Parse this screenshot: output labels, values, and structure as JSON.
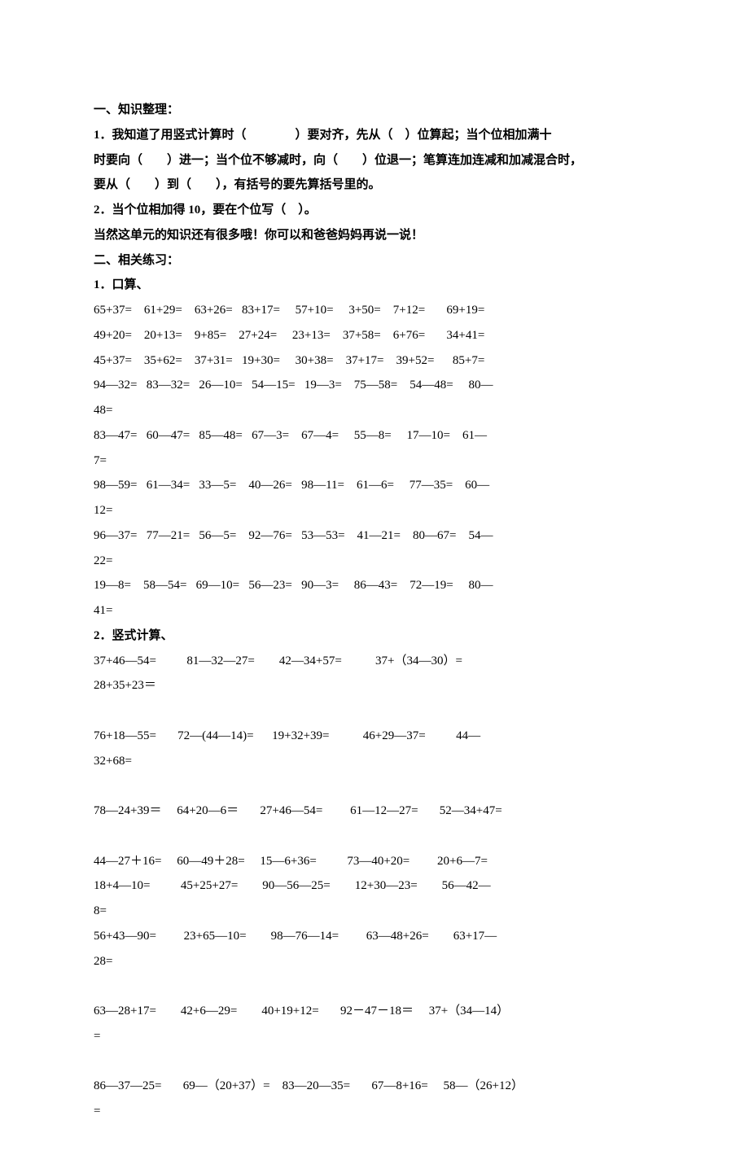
{
  "section1_title": "一、知识整理：",
  "p1_l1": "1．我知道了用竖式计算时（　　　　）要对齐，先从（　）位算起；当个位相加满十",
  "p1_l2": "时要向（　　）进一；当个位不够减时，向（　　）位退一；笔算连加连减和加减混合时，",
  "p1_l3": "要从（　　）到（　　），有括号的要先算括号里的。",
  "p2": "2．当个位相加得 10，要在个位写（　）。",
  "p3": "当然这单元的知识还有很多哦！你可以和爸爸妈妈再说一说！",
  "section2_title": "二、相关练习：",
  "ex1_title": "1．口算、",
  "r1": "65+37=    61+29=    63+26=   83+17=     57+10=     3+50=    7+12=       69+19=",
  "r2": "49+20=    20+13=    9+85=    27+24=     23+13=    37+58=    6+76=       34+41=",
  "r3": "45+37=    35+62=    37+31=   19+30=     30+38=    37+17=    39+52=      85+7=",
  "r4": "94—32=   83—32=   26—10=   54—15=   19—3=    75—58=    54—48=     80—",
  "r4b": "48=",
  "r5": "83—47=   60—47=   85—48=   67—3=    67—4=     55—8=     17—10=    61—",
  "r5b": "7=",
  "r6": "98—59=   61—34=   33—5=    40—26=   98—11=    61—6=     77—35=    60—",
  "r6b": "12=",
  "r7": "96—37=   77—21=   56—5=    92—76=   53—53=    41—21=    80—67=    54—",
  "r7b": "22=",
  "r8": "19—8=    58—54=   69—10=   56—23=   90—3=     86—43=    72—19=     80—",
  "r8b": "41=",
  "ex2_title": "2．竖式计算、",
  "v1": "37+46—54=          81—32—27=        42—34+57=           37+（34—30）=",
  "v1b": "28+35+23＝",
  "v2": "76+18—55=       72—(44—14)=      19+32+39=           46+29—37=          44—",
  "v2b": "32+68=",
  "v3": "78—24+39＝     64+20—6＝       27+46—54=         61—12—27=       52—34+47=",
  "v4": "44—27＋16=     60—49＋28=     15—6+36=          73—40+20=         20+6—7=",
  "v5": "18+4—10=          45+25+27=        90—56—25=        12+30—23=        56—42—",
  "v5b": "8=",
  "v6": "56+43—90=         23+65—10=        98—76—14=         63—48+26=        63+17—",
  "v6b": "28=",
  "v7": "63—28+17=        42+6—29=        40+19+12=       92－47－18＝     37+（34—14）",
  "v7b": "=",
  "v8": "86—37—25=       69—（20+37）=    83—20—35=       67—8+16=     58—（26+12）",
  "v8b": "="
}
